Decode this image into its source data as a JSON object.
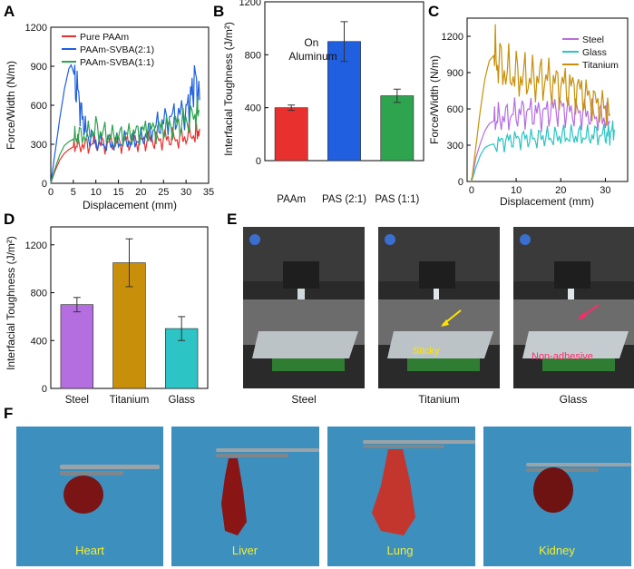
{
  "panel_labels": {
    "A": "A",
    "B": "B",
    "C": "C",
    "D": "D",
    "E": "E",
    "F": "F"
  },
  "colors": {
    "red": "#e8312f",
    "blue": "#1f5fe0",
    "green": "#2ea44f",
    "purple": "#b56ee0",
    "cyan": "#2cc4c4",
    "gold": "#c8900a",
    "photo_bg": "#3d8fbe"
  },
  "chart_data": [
    {
      "panel": "A",
      "type": "line",
      "xlabel": "Displacement (mm)",
      "ylabel": "Force/Width (N/m)",
      "xlim": [
        0,
        35
      ],
      "ylim": [
        0,
        1200
      ],
      "xticks": [
        "0",
        "5",
        "10",
        "15",
        "20",
        "25",
        "30",
        "35"
      ],
      "yticks": [
        "0",
        "300",
        "600",
        "900",
        "1200"
      ],
      "series": [
        {
          "name": "Pure PAAm",
          "color": "#e8312f",
          "x": [
            0,
            1,
            2,
            3,
            4,
            5,
            6,
            8,
            10,
            12,
            14,
            16,
            18,
            20,
            22,
            24,
            26,
            28,
            30,
            32,
            33
          ],
          "y": [
            0,
            100,
            180,
            230,
            260,
            280,
            300,
            290,
            310,
            300,
            320,
            310,
            330,
            320,
            340,
            330,
            350,
            340,
            360,
            380,
            420
          ]
        },
        {
          "name": "PAAm-SVBA(2:1)",
          "color": "#1f5fe0",
          "x": [
            0,
            1,
            2,
            3,
            4,
            4.5,
            5,
            6,
            7,
            8,
            10,
            12,
            14,
            16,
            18,
            20,
            22,
            24,
            26,
            28,
            30,
            31,
            32,
            33
          ],
          "y": [
            0,
            250,
            500,
            720,
            880,
            910,
            860,
            700,
            500,
            380,
            320,
            300,
            310,
            320,
            330,
            340,
            400,
            450,
            500,
            520,
            560,
            650,
            820,
            640
          ]
        },
        {
          "name": "PAAm-SVBA(1:1)",
          "color": "#2ea44f",
          "x": [
            0,
            1,
            2,
            3,
            4,
            5,
            6,
            8,
            10,
            12,
            14,
            16,
            18,
            20,
            22,
            24,
            26,
            28,
            30,
            32,
            33
          ],
          "y": [
            0,
            120,
            220,
            290,
            320,
            340,
            360,
            370,
            420,
            380,
            360,
            370,
            380,
            400,
            410,
            420,
            440,
            460,
            480,
            520,
            560
          ]
        }
      ]
    },
    {
      "panel": "B",
      "type": "bar",
      "ylabel": "Interfacial Toughness (J/m²)",
      "annotation": "On Aluminum",
      "categories": [
        "PAAm",
        "PAS (2:1)",
        "PAS (1:1)"
      ],
      "values": [
        400,
        900,
        490
      ],
      "errors": [
        20,
        150,
        50
      ],
      "colors": [
        "#e8312f",
        "#1f5fe0",
        "#2ea44f"
      ],
      "ylim": [
        0,
        1200
      ],
      "yticks": [
        "0",
        "400",
        "800",
        "1200"
      ]
    },
    {
      "panel": "C",
      "type": "line",
      "xlabel": "Displacement (mm)",
      "ylabel": "Force/Width (N/m)",
      "xlim": [
        -1,
        35
      ],
      "ylim": [
        0,
        1350
      ],
      "xticks": [
        "0",
        "10",
        "20",
        "30"
      ],
      "yticks": [
        "0",
        "300",
        "600",
        "900",
        "1200"
      ],
      "series": [
        {
          "name": "Steel",
          "color": "#b56ee0",
          "x": [
            0,
            1,
            2,
            3,
            4,
            5,
            6,
            8,
            10,
            12,
            14,
            16,
            18,
            20,
            22,
            24,
            26,
            28,
            30,
            31
          ],
          "y": [
            0,
            200,
            320,
            420,
            480,
            500,
            520,
            540,
            560,
            580,
            570,
            560,
            600,
            610,
            580,
            570,
            560,
            540,
            520,
            500
          ]
        },
        {
          "name": "Glass",
          "color": "#2cc4c4",
          "x": [
            0,
            1,
            2,
            3,
            4,
            6,
            8,
            10,
            12,
            14,
            16,
            18,
            20,
            22,
            24,
            26,
            28,
            30,
            31,
            32
          ],
          "y": [
            0,
            120,
            220,
            280,
            300,
            320,
            340,
            350,
            360,
            350,
            370,
            360,
            380,
            370,
            380,
            370,
            390,
            380,
            400,
            430
          ]
        },
        {
          "name": "Titanium",
          "color": "#c8900a",
          "x": [
            0,
            1,
            2,
            3,
            4,
            5,
            6,
            8,
            10,
            12,
            14,
            16,
            18,
            20,
            22,
            24,
            26,
            28,
            30,
            31
          ],
          "y": [
            0,
            300,
            600,
            850,
            1000,
            1040,
            980,
            900,
            880,
            860,
            840,
            860,
            820,
            800,
            780,
            760,
            700,
            650,
            600,
            560
          ]
        }
      ]
    },
    {
      "panel": "D",
      "type": "bar",
      "ylabel": "Interfacial Toughness (J/m²)",
      "categories": [
        "Steel",
        "Titanium",
        "Glass"
      ],
      "values": [
        700,
        1050,
        500
      ],
      "errors": [
        60,
        200,
        100
      ],
      "colors": [
        "#b56ee0",
        "#c8900a",
        "#2cc4c4"
      ],
      "ylim": [
        0,
        1350
      ],
      "yticks": [
        "0",
        "400",
        "800",
        "1200"
      ]
    }
  ],
  "panel_E": {
    "captions": [
      "Steel",
      "Titanium",
      "Glass"
    ],
    "annotations": {
      "sticky": "Sticky",
      "non_adhesive": "Non-adhesive"
    }
  },
  "panel_F": {
    "organs": [
      "Heart",
      "Liver",
      "Lung",
      "Kidney"
    ]
  }
}
